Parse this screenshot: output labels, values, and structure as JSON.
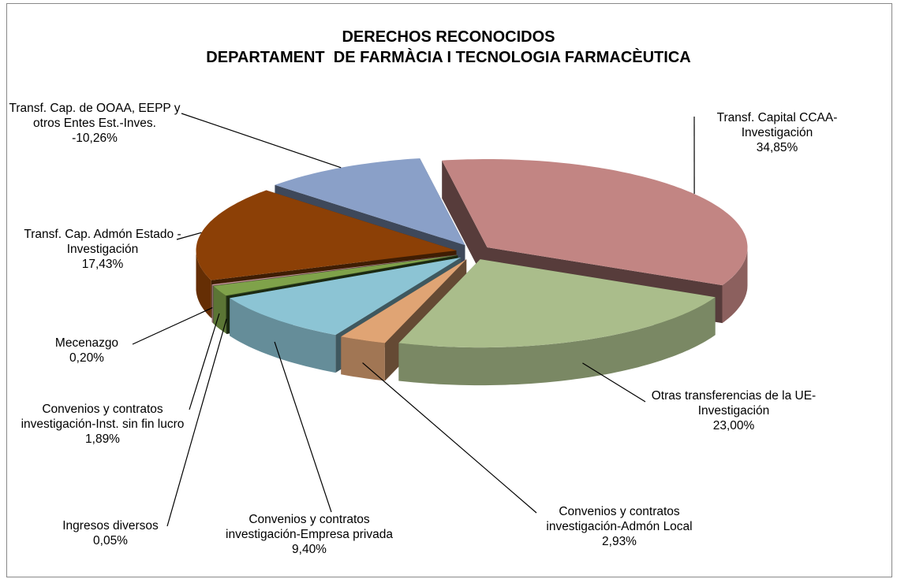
{
  "chart_data": {
    "type": "pie3d",
    "title": "DERECHOS RECONOCIDOS",
    "subtitle": "DEPARTAMENT  DE FARMÀCIA I TECNOLOGIA FARMACÈUTICA",
    "categories": [
      "Transf. Capital CCAA-Investigación",
      "Otras transferencias de la UE- Investigación",
      "Convenios y contratos investigación-Admón Local",
      "Convenios y contratos investigación-Empresa privada",
      "Ingresos diversos",
      "Convenios y contratos investigación-Inst. sin fin lucro",
      "Mecenazgo",
      "Transf. Cap. Admón Estado - Investigación",
      "Transf. Cap. de OOAA, EEPP y otros Entes Est.-Inves."
    ],
    "values": [
      34.85,
      23.0,
      2.93,
      9.4,
      0.05,
      1.89,
      0.2,
      17.43,
      -10.26
    ],
    "value_labels": [
      "34,85%",
      "23,00%",
      "2,93%",
      "9,40%",
      "0,05%",
      "1,89%",
      "0,20%",
      "17,43%",
      "-10,26%"
    ],
    "colors": [
      "#c28583",
      "#aabd8b",
      "#e0a474",
      "#8cc4d4",
      "#3d5a25",
      "#7fa24a",
      "#c89a9a",
      "#8c4006",
      "#8aa0c8"
    ]
  }
}
